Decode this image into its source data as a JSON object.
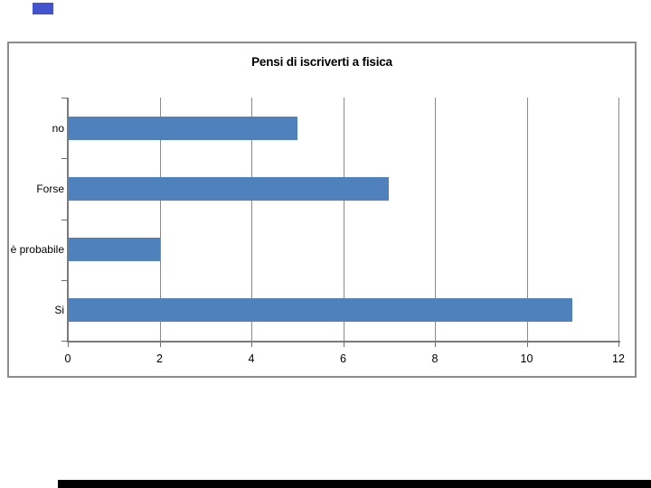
{
  "page": {
    "background": "#ffffff"
  },
  "decor": {
    "top_left_square_color": "#4353CE",
    "bottom_bar_color": "#000000"
  },
  "chart_data": {
    "type": "bar",
    "orientation": "horizontal",
    "title": "Pensi di iscriverti a fisica",
    "categories": [
      "no",
      "Forse",
      "è probabile",
      "Si"
    ],
    "values": [
      5,
      7,
      2,
      11
    ],
    "xlabel": "",
    "ylabel": "",
    "xlim": [
      0,
      12
    ],
    "xticks": [
      0,
      2,
      4,
      6,
      8,
      10,
      12
    ],
    "grid": "vertical",
    "legend": false,
    "bar_color": "#4F81BD",
    "gridline_color": "#8A8A8A",
    "axis_color": "#7A7A7A",
    "tick_color": "#6E6E6E",
    "frame_border_color": "#8C8C8C",
    "text_color": "#000000"
  }
}
